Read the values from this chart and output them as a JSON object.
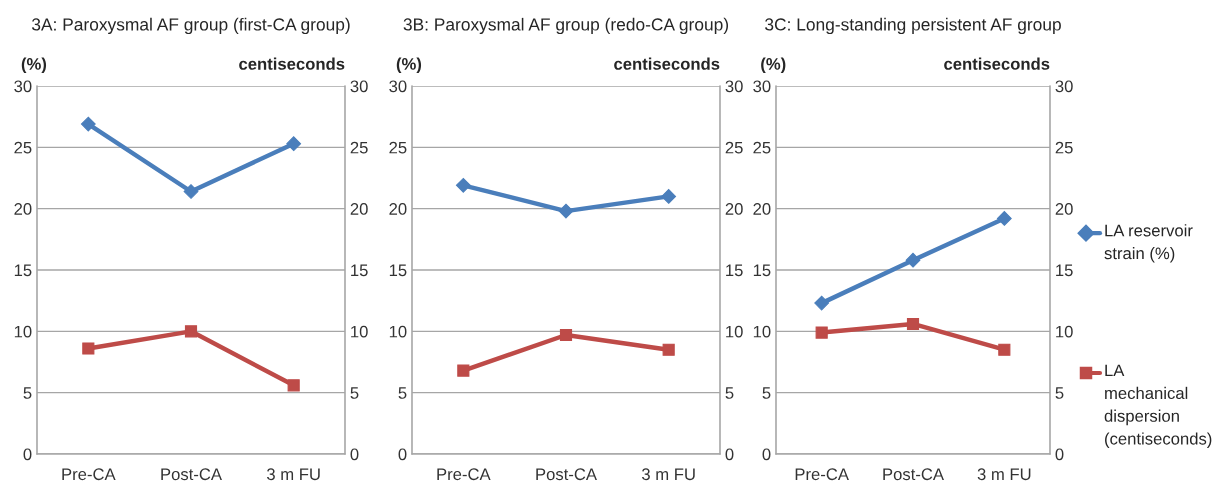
{
  "chart_data": [
    {
      "type": "line",
      "title": "3A: Paroxysmal AF group (first-CA group)",
      "ylabel": "(%)",
      "y2label": "centiseconds",
      "categories": [
        "Pre-CA",
        "Post-CA",
        "3 m FU"
      ],
      "series": [
        {
          "color": "#4a7ebb",
          "marker": "diamond",
          "values": [
            26.9,
            21.4,
            25.3
          ]
        },
        {
          "color": "#be4b48",
          "marker": "square",
          "values": [
            8.6,
            10.0,
            5.6
          ]
        }
      ],
      "ylim": [
        0,
        30
      ],
      "yticks": [
        0,
        5,
        10,
        15,
        20,
        25,
        30
      ],
      "y2lim": [
        0,
        30
      ],
      "y2ticks": [
        0,
        5,
        10,
        15,
        20,
        25,
        30
      ],
      "grid": "y",
      "line_style": "solid"
    },
    {
      "type": "line",
      "title": "3B: Paroxysmal AF group (redo-CA group)",
      "ylabel": "(%)",
      "y2label": "centiseconds",
      "categories": [
        "Pre-CA",
        "Post-CA",
        "3 m FU"
      ],
      "series": [
        {
          "color": "#4a7ebb",
          "marker": "diamond",
          "values": [
            21.9,
            19.8,
            21.0
          ]
        },
        {
          "color": "#be4b48",
          "marker": "square",
          "values": [
            6.8,
            9.7,
            8.5
          ]
        }
      ],
      "ylim": [
        0,
        30
      ],
      "yticks": [
        0,
        5,
        10,
        15,
        20,
        25,
        30
      ],
      "y2lim": [
        0,
        30
      ],
      "y2ticks": [
        0,
        5,
        10,
        15,
        20,
        25,
        30
      ],
      "grid": "y",
      "line_style": "solid"
    },
    {
      "type": "line",
      "title": "3C: Long-standing persistent AF group",
      "ylabel": "(%)",
      "y2label": "centiseconds",
      "categories": [
        "Pre-CA",
        "Post-CA",
        "3 m FU"
      ],
      "series": [
        {
          "name": "LA reservoir strain (%)",
          "color": "#4a7ebb",
          "marker": "diamond",
          "values": [
            12.3,
            15.8,
            19.2
          ]
        },
        {
          "name": "LA mechanical dispersion (centiseconds)",
          "color": "#be4b48",
          "marker": "square",
          "values": [
            9.9,
            10.6,
            8.5
          ]
        }
      ],
      "ylim": [
        0,
        30
      ],
      "yticks": [
        0,
        5,
        10,
        15,
        20,
        25,
        30
      ],
      "y2lim": [
        0,
        30
      ],
      "y2ticks": [
        0,
        5,
        10,
        15,
        20,
        25,
        30
      ],
      "grid": "y",
      "legend": "right",
      "line_style": "solid"
    }
  ]
}
